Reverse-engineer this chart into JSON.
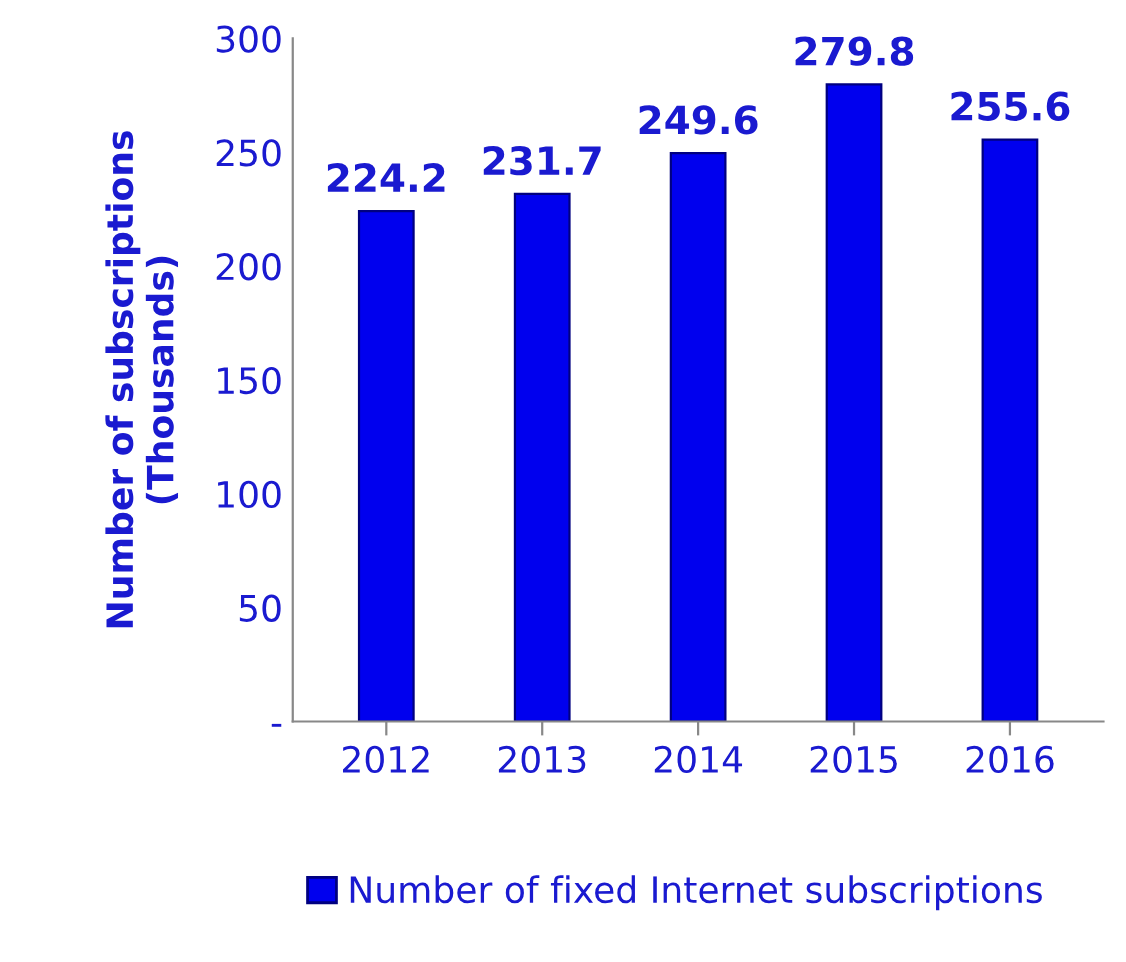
{
  "chart_data": {
    "type": "bar",
    "ylabel": "Number of subscriptions\n(Thousands)",
    "categories": [
      "2012",
      "2013",
      "2014",
      "2015",
      "2016"
    ],
    "series": [
      {
        "name": "Number of fixed Internet subscriptions",
        "color": "#0000ee",
        "values": [
          224.2,
          231.7,
          249.6,
          279.8,
          255.6
        ]
      }
    ],
    "ylim": [
      0,
      300
    ],
    "yticks": [
      {
        "value": 0,
        "label": "-"
      },
      50,
      100,
      150,
      200,
      250,
      300
    ],
    "data_labels": true,
    "legend": "bottom",
    "grid": false
  }
}
